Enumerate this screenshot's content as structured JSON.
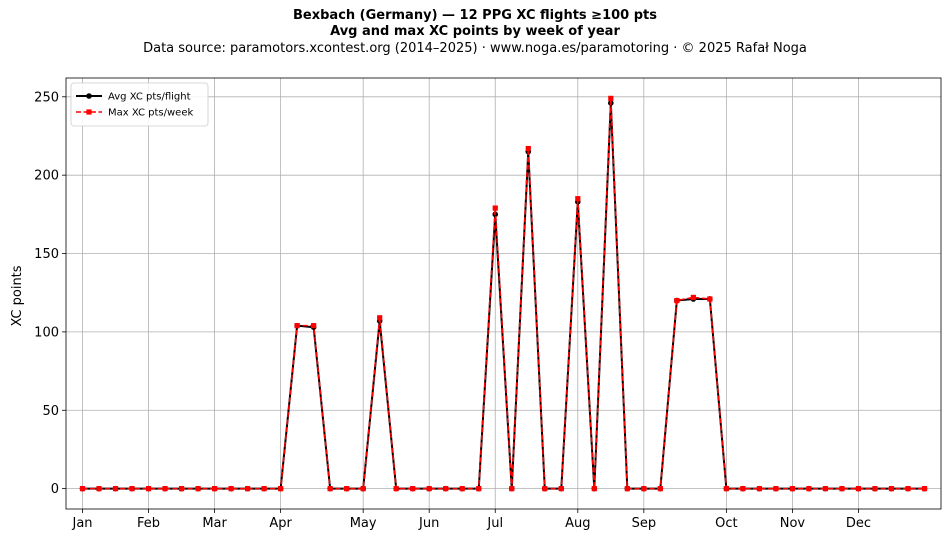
{
  "chart_data": {
    "type": "line",
    "title": "Bexbach (Germany)  —  12 PPG XC flights ≥100 pts",
    "subtitle": "Avg and max XC points by week of year",
    "source": "Data source: paramotors.xcontest.org (2014–2025)  ·  www.noga.es/paramotoring  ·  © 2025 Rafał Noga",
    "xlabel": "",
    "ylabel": "XC points",
    "xlim": [
      0,
      53
    ],
    "ylim": [
      -13,
      262
    ],
    "yticks": [
      0,
      50,
      100,
      150,
      200,
      250
    ],
    "xticks": [
      {
        "label": "Jan",
        "x": 1
      },
      {
        "label": "Feb",
        "x": 5
      },
      {
        "label": "Mar",
        "x": 9
      },
      {
        "label": "Apr",
        "x": 13
      },
      {
        "label": "May",
        "x": 18
      },
      {
        "label": "Jun",
        "x": 22
      },
      {
        "label": "Jul",
        "x": 26
      },
      {
        "label": "Aug",
        "x": 31
      },
      {
        "label": "Sep",
        "x": 35
      },
      {
        "label": "Oct",
        "x": 40
      },
      {
        "label": "Nov",
        "x": 44
      },
      {
        "label": "Dec",
        "x": 48
      }
    ],
    "grid": true,
    "legend_position": "top-left",
    "x": [
      1,
      2,
      3,
      4,
      5,
      6,
      7,
      8,
      9,
      10,
      11,
      12,
      13,
      14,
      15,
      16,
      17,
      18,
      19,
      20,
      21,
      22,
      23,
      24,
      25,
      26,
      27,
      28,
      29,
      30,
      31,
      32,
      33,
      34,
      35,
      36,
      37,
      38,
      39,
      40,
      41,
      42,
      43,
      44,
      45,
      46,
      47,
      48,
      49,
      50,
      51,
      52
    ],
    "series": [
      {
        "name": "Avg XC pts/flight",
        "color": "#000000",
        "marker": "circle",
        "linestyle": "solid",
        "values": [
          0,
          0,
          0,
          0,
          0,
          0,
          0,
          0,
          0,
          0,
          0,
          0,
          0,
          104,
          103,
          0,
          0,
          0,
          107,
          0,
          0,
          0,
          0,
          0,
          0,
          175,
          0,
          215,
          0,
          0,
          183,
          0,
          246,
          0,
          0,
          0,
          120,
          121,
          121,
          0,
          0,
          0,
          0,
          0,
          0,
          0,
          0,
          0,
          0,
          0,
          0,
          0
        ]
      },
      {
        "name": "Max XC pts/week",
        "color": "#ff0000",
        "marker": "square",
        "linestyle": "dashed",
        "values": [
          0,
          0,
          0,
          0,
          0,
          0,
          0,
          0,
          0,
          0,
          0,
          0,
          0,
          104,
          104,
          0,
          0,
          0,
          109,
          0,
          0,
          0,
          0,
          0,
          0,
          179,
          0,
          217,
          0,
          0,
          185,
          0,
          249,
          0,
          0,
          0,
          120,
          122,
          121,
          0,
          0,
          0,
          0,
          0,
          0,
          0,
          0,
          0,
          0,
          0,
          0,
          0
        ]
      }
    ]
  }
}
